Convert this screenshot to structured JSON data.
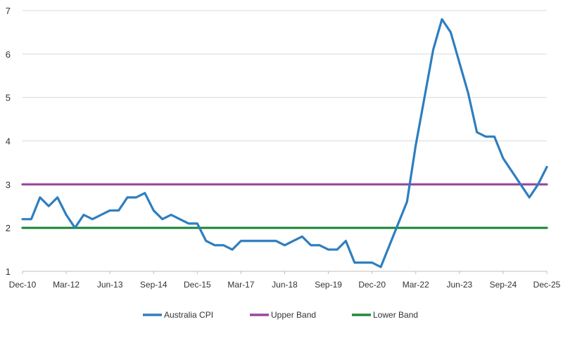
{
  "chart_data": {
    "type": "line",
    "title": "",
    "xlabel": "",
    "ylabel": "",
    "ylim": [
      1,
      7
    ],
    "yticks": [
      1,
      2,
      3,
      4,
      5,
      6,
      7
    ],
    "grid": "horizontal",
    "legend_position": "bottom",
    "x_tick_labels": [
      "Dec-10",
      "Mar-12",
      "Jun-13",
      "Sep-14",
      "Dec-15",
      "Mar-17",
      "Jun-18",
      "Sep-19",
      "Dec-20",
      "Mar-22",
      "Jun-23",
      "Sep-24",
      "Dec-25"
    ],
    "x": [
      "Dec-10",
      "Mar-11",
      "Jun-11",
      "Sep-11",
      "Dec-11",
      "Mar-12",
      "Jun-12",
      "Sep-12",
      "Dec-12",
      "Mar-13",
      "Jun-13",
      "Sep-13",
      "Dec-13",
      "Mar-14",
      "Jun-14",
      "Sep-14",
      "Dec-14",
      "Mar-15",
      "Jun-15",
      "Sep-15",
      "Dec-15",
      "Mar-16",
      "Jun-16",
      "Sep-16",
      "Dec-16",
      "Mar-17",
      "Jun-17",
      "Sep-17",
      "Dec-17",
      "Mar-18",
      "Jun-18",
      "Sep-18",
      "Dec-18",
      "Mar-19",
      "Jun-19",
      "Sep-19",
      "Dec-19",
      "Mar-20",
      "Jun-20",
      "Sep-20",
      "Dec-20",
      "Mar-21",
      "Jun-21",
      "Sep-21",
      "Dec-21",
      "Mar-22",
      "Jun-22",
      "Sep-22",
      "Dec-22",
      "Mar-23",
      "Jun-23",
      "Sep-23",
      "Dec-23",
      "Mar-24",
      "Jun-24",
      "Sep-24",
      "Dec-24",
      "Mar-25",
      "Jun-25",
      "Sep-25",
      "Dec-25"
    ],
    "series": [
      {
        "name": "Australia CPI",
        "color": "#2e7ebf",
        "values": [
          2.2,
          2.2,
          2.7,
          2.5,
          2.7,
          2.3,
          2.0,
          2.3,
          2.2,
          2.3,
          2.4,
          2.4,
          2.7,
          2.7,
          2.8,
          2.4,
          2.2,
          2.3,
          2.2,
          2.1,
          2.1,
          1.7,
          1.6,
          1.6,
          1.5,
          1.7,
          1.7,
          1.7,
          1.7,
          1.7,
          1.6,
          1.7,
          1.8,
          1.6,
          1.6,
          1.5,
          1.5,
          1.7,
          1.2,
          1.2,
          1.2,
          1.1,
          1.6,
          2.1,
          2.6,
          3.9,
          5.0,
          6.1,
          6.8,
          6.5,
          5.8,
          5.1,
          4.2,
          4.1,
          4.1,
          3.6,
          3.3,
          3.0,
          2.7,
          3.0,
          3.4
        ]
      },
      {
        "name": "Upper Band",
        "color": "#9a479e",
        "values": [
          3,
          3,
          3,
          3,
          3,
          3,
          3,
          3,
          3,
          3,
          3,
          3,
          3,
          3,
          3,
          3,
          3,
          3,
          3,
          3,
          3,
          3,
          3,
          3,
          3,
          3,
          3,
          3,
          3,
          3,
          3,
          3,
          3,
          3,
          3,
          3,
          3,
          3,
          3,
          3,
          3,
          3,
          3,
          3,
          3,
          3,
          3,
          3,
          3,
          3,
          3,
          3,
          3,
          3,
          3,
          3,
          3,
          3,
          3,
          3,
          3
        ]
      },
      {
        "name": "Lower Band",
        "color": "#1f8a3b",
        "values": [
          2,
          2,
          2,
          2,
          2,
          2,
          2,
          2,
          2,
          2,
          2,
          2,
          2,
          2,
          2,
          2,
          2,
          2,
          2,
          2,
          2,
          2,
          2,
          2,
          2,
          2,
          2,
          2,
          2,
          2,
          2,
          2,
          2,
          2,
          2,
          2,
          2,
          2,
          2,
          2,
          2,
          2,
          2,
          2,
          2,
          2,
          2,
          2,
          2,
          2,
          2,
          2,
          2,
          2,
          2,
          2,
          2,
          2,
          2,
          2,
          2
        ]
      }
    ],
    "gridline_color": "#d9d9d9",
    "axis_color": "#bfbfbf"
  }
}
